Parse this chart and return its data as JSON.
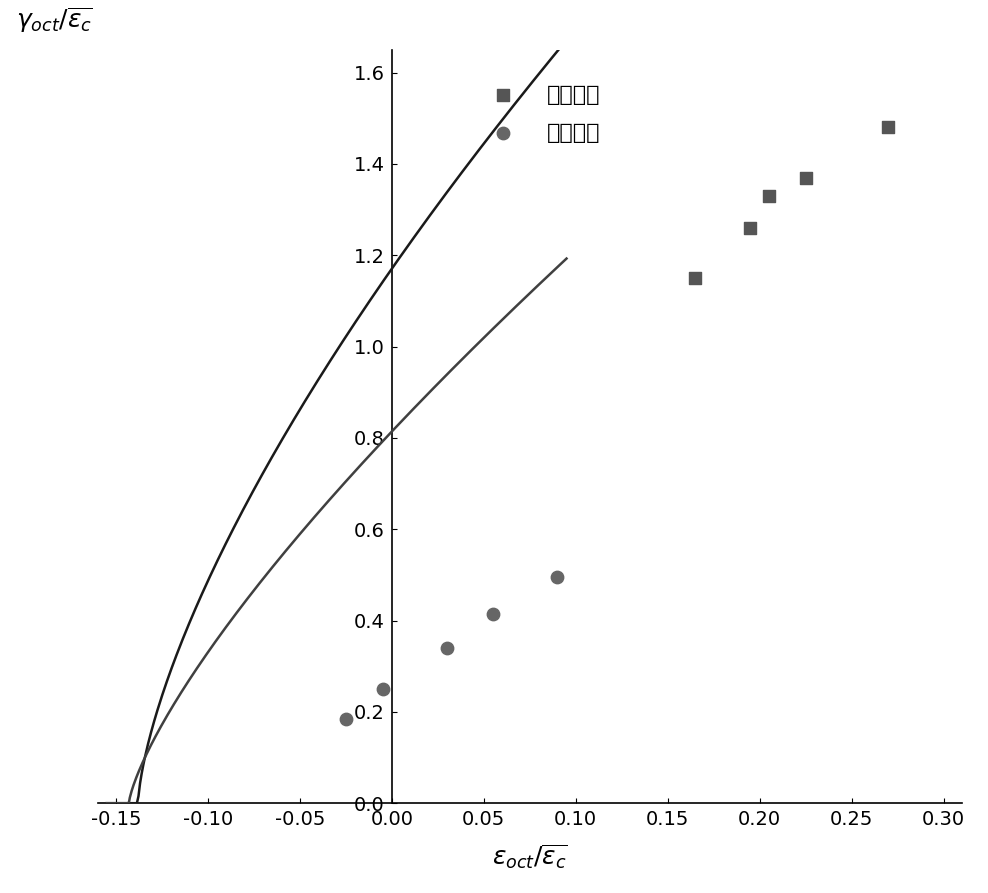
{
  "title": "",
  "xlabel_math": "$\\varepsilon_{oct}/\\overline{\\varepsilon_c}$",
  "ylabel_math": "$\\gamma_{oct}/\\overline{\\varepsilon_c}$",
  "xlim": [
    -0.16,
    0.31
  ],
  "ylim": [
    0.0,
    1.65
  ],
  "xticks": [
    -0.15,
    -0.1,
    -0.05,
    0.0,
    0.05,
    0.1,
    0.15,
    0.2,
    0.25,
    0.3
  ],
  "yticks": [
    0.0,
    0.2,
    0.4,
    0.6,
    0.8,
    1.0,
    1.2,
    1.4,
    1.6
  ],
  "square_points_x": [
    0.165,
    0.195,
    0.205,
    0.225,
    0.27
  ],
  "square_points_y": [
    1.15,
    1.26,
    1.33,
    1.37,
    1.48
  ],
  "circle_points_x": [
    -0.025,
    -0.005,
    0.03,
    0.055,
    0.09
  ],
  "circle_points_y": [
    0.185,
    0.25,
    0.34,
    0.415,
    0.495
  ],
  "curve1_x_start": -0.155,
  "curve1_x_end": 0.275,
  "curve1_a": 5.0,
  "curve1_b": 0.5,
  "curve2_x_start": -0.155,
  "curve2_x_end": 0.095,
  "curve2_a": 5.5,
  "curve2_b": 0.5,
  "line_color": "#1a1a1a",
  "square_color": "#555555",
  "circle_color": "#666666",
  "legend_label_square": "压子午线",
  "legend_label_circle": "拉子午线",
  "background_color": "#ffffff",
  "tick_fontsize": 14,
  "label_fontsize": 18,
  "legend_fontsize": 16
}
